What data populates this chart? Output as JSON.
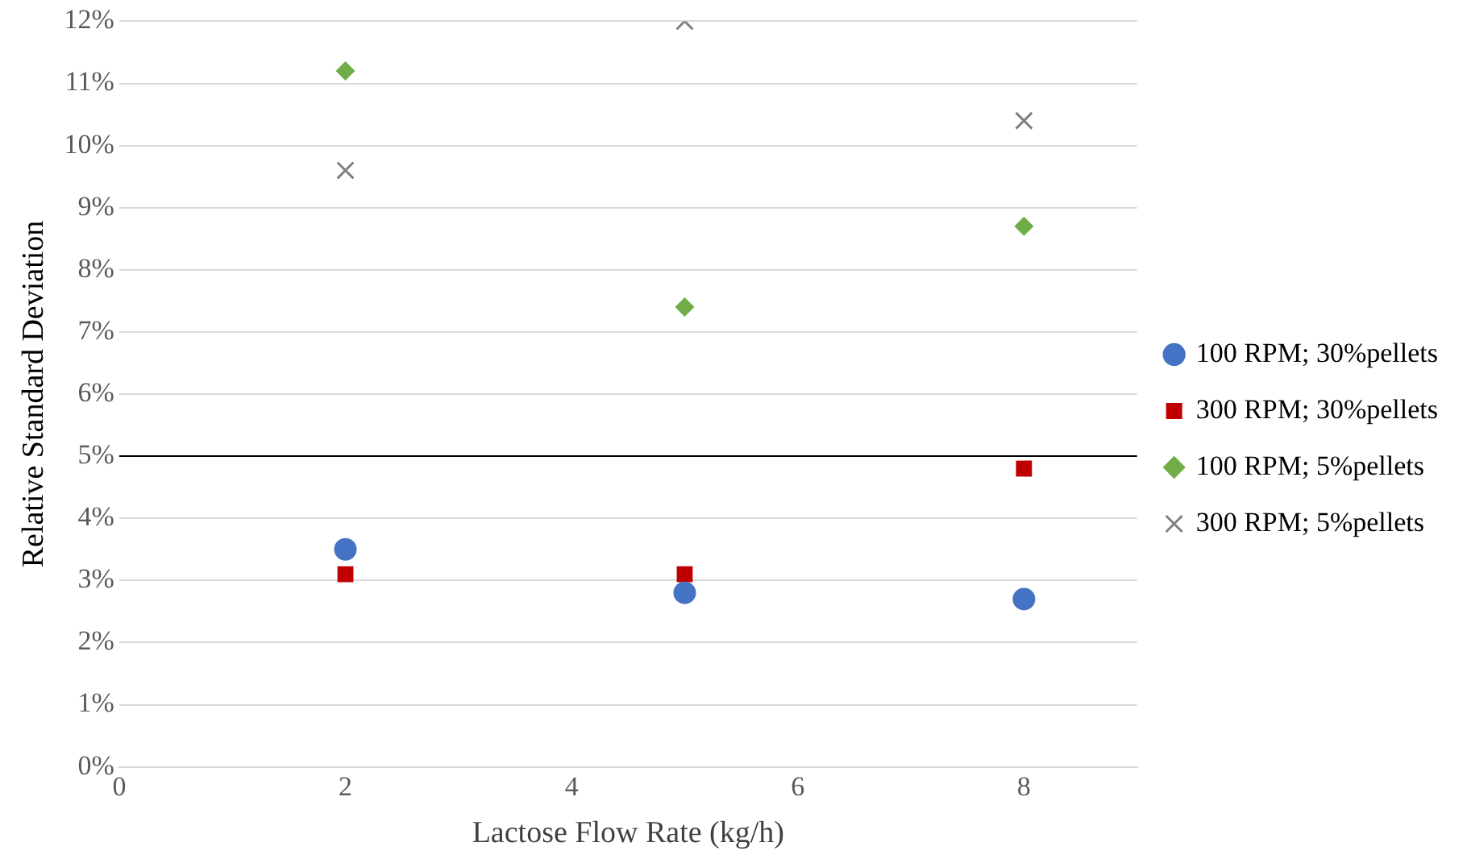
{
  "chart_data": {
    "type": "scatter",
    "xlabel": "Lactose Flow Rate (kg/h)",
    "ylabel": "Relative Standard Deviation",
    "xlim": [
      0,
      9
    ],
    "xticks": [
      0,
      2,
      4,
      6,
      8
    ],
    "ylim": [
      0,
      12
    ],
    "yticks": [
      {
        "value": 0,
        "label": "0%"
      },
      {
        "value": 1,
        "label": "1%"
      },
      {
        "value": 2,
        "label": "2%"
      },
      {
        "value": 3,
        "label": "3%"
      },
      {
        "value": 4,
        "label": "4%"
      },
      {
        "value": 5,
        "label": "5%"
      },
      {
        "value": 6,
        "label": "6%"
      },
      {
        "value": 7,
        "label": "7%"
      },
      {
        "value": 8,
        "label": "8%"
      },
      {
        "value": 9,
        "label": "9%"
      },
      {
        "value": 10,
        "label": "10%"
      },
      {
        "value": 11,
        "label": "11%"
      },
      {
        "value": 12,
        "label": "12%"
      }
    ],
    "grid": "y",
    "legend": "right",
    "ref_lines": [
      {
        "axis": "y",
        "value": 5,
        "color": "#000000"
      }
    ],
    "series": [
      {
        "name": "100 RPM; 30%pellets",
        "color": "#4472c4",
        "marker": "circle",
        "x": [
          2,
          5,
          8
        ],
        "values": [
          3.5,
          2.8,
          2.7
        ]
      },
      {
        "name": "300 RPM; 30%pellets",
        "color": "#c00000",
        "marker": "square",
        "x": [
          2,
          5,
          8
        ],
        "values": [
          3.1,
          3.1,
          4.8
        ]
      },
      {
        "name": "100 RPM; 5%pellets",
        "color": "#70ad47",
        "marker": "diamond",
        "x": [
          2,
          5,
          8
        ],
        "values": [
          11.2,
          7.4,
          8.7
        ]
      },
      {
        "name": "300 RPM; 5%pellets",
        "color": "#808080",
        "marker": "cross",
        "x": [
          2,
          5,
          8
        ],
        "values": [
          9.6,
          12.0,
          10.4
        ]
      }
    ]
  }
}
